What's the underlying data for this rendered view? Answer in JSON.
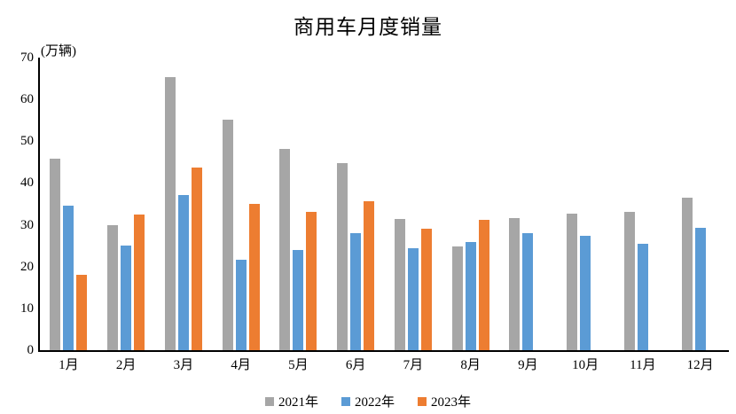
{
  "chart_data": {
    "type": "bar",
    "title": "商用车月度销量",
    "unit_label": "(万辆)",
    "xlabel": "",
    "ylabel": "万辆",
    "ylim": [
      0,
      70
    ],
    "ytick_step": 10,
    "grid": false,
    "legend_position": "bottom",
    "categories": [
      "1月",
      "2月",
      "3月",
      "4月",
      "5月",
      "6月",
      "7月",
      "8月",
      "9月",
      "10月",
      "11月",
      "12月"
    ],
    "series": [
      {
        "name": "2021年",
        "color": "#A6A6A6",
        "values": [
          45.9,
          29.9,
          65.4,
          55.2,
          48.2,
          44.7,
          31.3,
          24.8,
          31.7,
          32.6,
          33.0,
          36.4
        ]
      },
      {
        "name": "2022年",
        "color": "#5B9BD5",
        "values": [
          34.5,
          25.1,
          37.1,
          21.7,
          23.9,
          28.1,
          24.5,
          25.9,
          27.9,
          27.3,
          25.4,
          29.2
        ]
      },
      {
        "name": "2023年",
        "color": "#ED7D31",
        "values": [
          18.0,
          32.4,
          43.7,
          35.1,
          33.2,
          35.6,
          29.0,
          31.1,
          null,
          null,
          null,
          null
        ]
      }
    ],
    "colors": {
      "axis": "#000000",
      "text": "#000000",
      "background": "#FFFFFF"
    }
  }
}
